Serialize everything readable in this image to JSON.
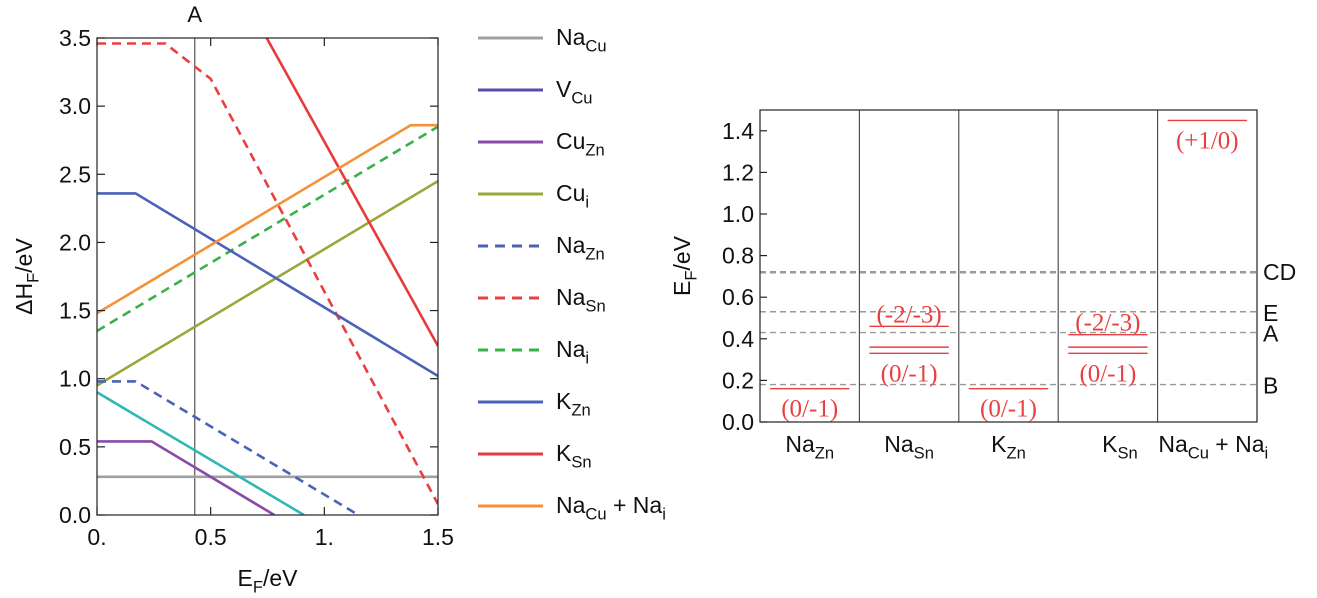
{
  "chart_data": [
    {
      "type": "line",
      "xlabel_main": "E",
      "xlabel_sub": "F",
      "xlabel_unit": "/eV",
      "ylabel_main": "ΔH",
      "ylabel_sub": "F",
      "ylabel_unit": "/eV",
      "xlim": [
        0,
        1.5
      ],
      "ylim": [
        0,
        3.5
      ],
      "x_ticks": [
        {
          "value": 0,
          "label": "0."
        },
        {
          "value": 0.5,
          "label": "0.5"
        },
        {
          "value": 1.0,
          "label": "1."
        },
        {
          "value": 1.5,
          "label": "1.5"
        }
      ],
      "y_ticks": [
        {
          "value": 0,
          "label": "0.0"
        },
        {
          "value": 0.5,
          "label": "0.5"
        },
        {
          "value": 1.0,
          "label": "1.0"
        },
        {
          "value": 1.5,
          "label": "1.5"
        },
        {
          "value": 2.0,
          "label": "2.0"
        },
        {
          "value": 2.5,
          "label": "2.5"
        },
        {
          "value": 3.0,
          "label": "3.0"
        },
        {
          "value": 3.5,
          "label": "3.5"
        }
      ],
      "vline": {
        "x": 0.43,
        "label": "A"
      },
      "series": [
        {
          "name": "Na",
          "sub": "Cu",
          "color": "#a0a0a0",
          "dash": false,
          "points": [
            [
              0,
              0.28
            ],
            [
              1.5,
              0.28
            ]
          ]
        },
        {
          "name": "V",
          "sub": "Cu",
          "color": "#5b4aa8",
          "dash": false,
          "points": []
        },
        {
          "name": "Cu",
          "sub": "Zn",
          "color": "#8a4aa8",
          "dash": false,
          "points": [
            [
              0,
              0.54
            ],
            [
              0.24,
              0.54
            ],
            [
              0.78,
              0.0
            ]
          ]
        },
        {
          "name": "Cu",
          "sub": "i",
          "color": "#9aa83a",
          "dash": false,
          "points": [
            [
              0,
              0.95
            ],
            [
              1.5,
              2.45
            ]
          ]
        },
        {
          "name": "Na",
          "sub": "Zn",
          "color": "#4a62b8",
          "dash": true,
          "points": [
            [
              0,
              0.98
            ],
            [
              0.17,
              0.98
            ],
            [
              1.15,
              0.0
            ]
          ]
        },
        {
          "name": "Na",
          "sub": "Sn",
          "color": "#e84040",
          "dash": true,
          "points": [
            [
              0,
              3.46
            ],
            [
              0.3,
              3.46
            ],
            [
              0.5,
              3.2
            ],
            [
              1.5,
              0.08
            ]
          ]
        },
        {
          "name": "Na",
          "sub": "i",
          "color": "#3ab04a",
          "dash": true,
          "points": [
            [
              0,
              1.35
            ],
            [
              1.5,
              2.85
            ]
          ]
        },
        {
          "name": "K",
          "sub": "Zn",
          "color": "#4a62b8",
          "dash": false,
          "points": [
            [
              0,
              2.36
            ],
            [
              0.17,
              2.36
            ],
            [
              1.5,
              1.02
            ]
          ]
        },
        {
          "name": "K",
          "sub": "Sn",
          "color": "#e83a3a",
          "dash": false,
          "points": [
            [
              0.74,
              3.52
            ],
            [
              1.5,
              1.24
            ]
          ]
        },
        {
          "name": "Na",
          "sub": "Cu",
          "suffix": " + Na",
          "suffix_sub": "i",
          "color": "#f5913a",
          "dash": false,
          "points": [
            [
              0,
              1.48
            ],
            [
              1.38,
              2.86
            ],
            [
              1.5,
              2.86
            ]
          ]
        }
      ],
      "extra_series": [
        {
          "color": "#30b8b8",
          "dash": false,
          "points": [
            [
              0,
              0.9
            ],
            [
              0.91,
              0.0
            ]
          ]
        }
      ]
    },
    {
      "type": "transition-levels",
      "ylabel_main": "E",
      "ylabel_sub": "F",
      "ylabel_unit": "/eV",
      "ylim": [
        0,
        1.5
      ],
      "y_ticks": [
        {
          "value": 0.0,
          "label": "0.0"
        },
        {
          "value": 0.2,
          "label": "0.2"
        },
        {
          "value": 0.4,
          "label": "0.4"
        },
        {
          "value": 0.6,
          "label": "0.6"
        },
        {
          "value": 0.8,
          "label": "0.8"
        },
        {
          "value": 1.0,
          "label": "1.0"
        },
        {
          "value": 1.2,
          "label": "1.2"
        },
        {
          "value": 1.4,
          "label": "1.4"
        }
      ],
      "columns": [
        {
          "name": "Na",
          "sub": "Zn",
          "suffix": "",
          "suffix_sub": ""
        },
        {
          "name": "Na",
          "sub": "Sn",
          "suffix": "",
          "suffix_sub": ""
        },
        {
          "name": "K",
          "sub": "Zn",
          "suffix": "",
          "suffix_sub": ""
        },
        {
          "name": "K",
          "sub": "Sn",
          "suffix": "",
          "suffix_sub": ""
        },
        {
          "name": "Na",
          "sub": "Cu",
          "suffix": " + Na",
          "suffix_sub": "i"
        }
      ],
      "reference_lines": [
        {
          "label": "CD",
          "value": 0.72
        },
        {
          "label": "E",
          "value": 0.53
        },
        {
          "label": "A",
          "value": 0.43
        },
        {
          "label": "B",
          "value": 0.18
        }
      ],
      "levels": [
        {
          "column": 0,
          "label": "(0/-1)",
          "values": [
            0.16
          ]
        },
        {
          "column": 1,
          "label": "(-2/-3)",
          "values": [
            0.46
          ]
        },
        {
          "column": 1,
          "label": "(0/-1)",
          "values": [
            0.36,
            0.33
          ]
        },
        {
          "column": 2,
          "label": "(0/-1)",
          "values": [
            0.16
          ]
        },
        {
          "column": 3,
          "label": "(-2/-3)",
          "values": [
            0.42
          ]
        },
        {
          "column": 3,
          "label": "(0/-1)",
          "values": [
            0.36,
            0.33
          ]
        },
        {
          "column": 4,
          "label": "(+1/0)",
          "values": [
            1.45
          ]
        }
      ]
    }
  ]
}
